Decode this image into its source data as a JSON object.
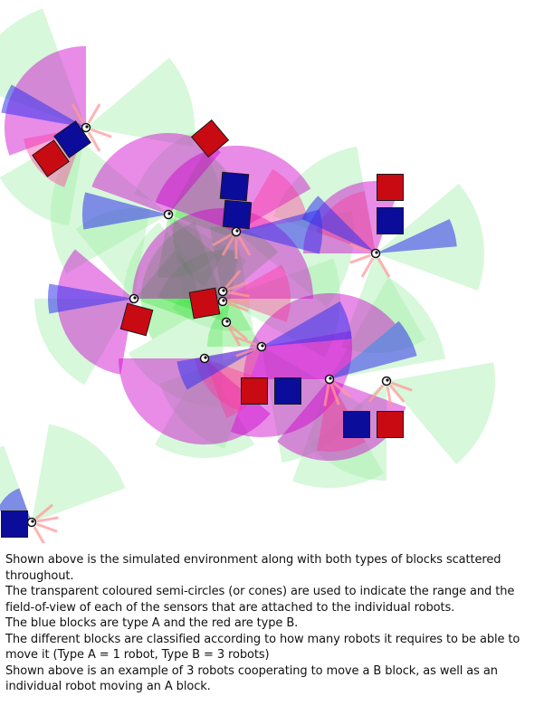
{
  "scene": {
    "colors": {
      "background": "#ffffff",
      "sensor_long_range": "#9fefa8",
      "sensor_green_dense": "#22dd22",
      "sensor_magenta": "#cc00cc",
      "sensor_pink": "#ff3399",
      "sensor_blue": "#3333ee",
      "ray_pink": "#ff9999",
      "block_type_a": "#0b0c9a",
      "block_type_b": "#c80a12"
    },
    "legend": {
      "block_type_a": "type A (blue) — moved by 1 robot",
      "block_type_b": "type B (red) — moved by 3 robots"
    }
  },
  "caption": {
    "lines": [
      "Shown above is the simulated environment along with both types of blocks scattered throughout.",
      "The transparent coloured semi-circles (or cones) are used to indicate the range and the field-of-view of each of the sensors that are attached to the individual robots.",
      "The blue blocks are type A and the red are type B.",
      "The different blocks are classified according to how many robots it requires to be able to move it (Type A = 1 robot, Type B = 3 robots)",
      "Shown above is an example of 3 robots cooperating to move a B block, as well as an individual robot moving an A block."
    ]
  }
}
